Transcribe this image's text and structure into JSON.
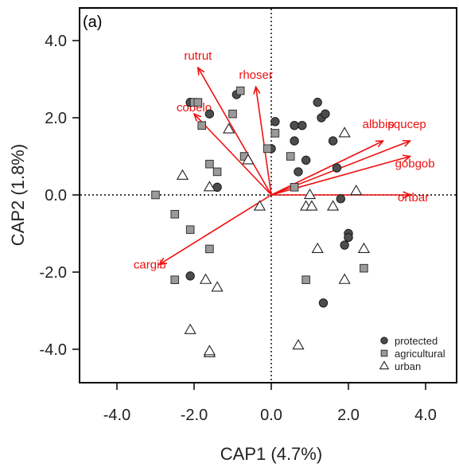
{
  "chart_data": {
    "type": "scatter",
    "panel_label": "(a)",
    "xlabel": "CAP1 (4.7%)",
    "ylabel": "CAP2 (1.8%)",
    "xlim": [
      -4.9,
      4.9
    ],
    "ylim": [
      -4.9,
      4.9
    ],
    "xticks": [
      -4.0,
      -2.0,
      0.0,
      2.0,
      4.0
    ],
    "yticks": [
      -4.0,
      -2.0,
      0.0,
      2.0,
      4.0
    ],
    "xtick_labels": [
      "-4.0",
      "-2.0",
      "0.0",
      "2.0",
      "4.0"
    ],
    "ytick_labels": [
      "-4.0",
      "-2.0",
      "0.0",
      "2.0",
      "4.0"
    ],
    "zero_lines": "dotted",
    "grid": false,
    "legend_position": "bottom-right",
    "arrow_color": "#ee1111",
    "series": [
      {
        "name": "protected",
        "marker": "circle",
        "color": "#4d4d4d",
        "points": [
          [
            -2.1,
            2.4
          ],
          [
            -1.6,
            2.1
          ],
          [
            -0.9,
            2.6
          ],
          [
            -1.4,
            0.2
          ],
          [
            -2.1,
            -2.1
          ],
          [
            0.1,
            1.9
          ],
          [
            0.0,
            1.2
          ],
          [
            0.6,
            1.8
          ],
          [
            0.8,
            1.8
          ],
          [
            1.2,
            2.4
          ],
          [
            1.3,
            2.0
          ],
          [
            1.4,
            2.1
          ],
          [
            1.6,
            1.4
          ],
          [
            0.6,
            1.4
          ],
          [
            0.9,
            0.9
          ],
          [
            0.7,
            0.6
          ],
          [
            1.7,
            0.7
          ],
          [
            1.8,
            -0.1
          ],
          [
            2.0,
            -1.0
          ],
          [
            2.0,
            -1.1
          ],
          [
            1.9,
            -1.3
          ],
          [
            1.35,
            -2.8
          ]
        ]
      },
      {
        "name": "agricultural",
        "marker": "square",
        "color": "#9a9a9a",
        "points": [
          [
            -2.0,
            2.4
          ],
          [
            -1.9,
            2.4
          ],
          [
            -1.8,
            1.8
          ],
          [
            -0.8,
            2.7
          ],
          [
            -1.0,
            2.1
          ],
          [
            0.1,
            1.6
          ],
          [
            -0.1,
            1.2
          ],
          [
            -0.7,
            1.0
          ],
          [
            -1.6,
            0.8
          ],
          [
            -1.4,
            0.6
          ],
          [
            -3.0,
            0.0
          ],
          [
            -2.5,
            -0.5
          ],
          [
            -2.1,
            -0.9
          ],
          [
            -1.6,
            -1.4
          ],
          [
            -2.5,
            -2.2
          ],
          [
            0.5,
            1.0
          ],
          [
            0.6,
            0.2
          ],
          [
            0.9,
            -2.2
          ],
          [
            2.4,
            -1.9
          ]
        ]
      },
      {
        "name": "urban",
        "marker": "triangle",
        "color": "#ffffff",
        "points": [
          [
            -1.1,
            1.7
          ],
          [
            -0.6,
            0.9
          ],
          [
            1.9,
            1.6
          ],
          [
            -2.3,
            0.5
          ],
          [
            -1.6,
            0.2
          ],
          [
            -0.3,
            -0.3
          ],
          [
            1.0,
            0.0
          ],
          [
            0.9,
            -0.3
          ],
          [
            1.05,
            -0.3
          ],
          [
            1.6,
            -0.3
          ],
          [
            2.2,
            0.1
          ],
          [
            1.2,
            -1.4
          ],
          [
            2.4,
            -1.4
          ],
          [
            -1.7,
            -2.2
          ],
          [
            -1.4,
            -2.4
          ],
          [
            1.9,
            -2.2
          ],
          [
            -2.1,
            -3.5
          ],
          [
            -1.6,
            -4.1
          ],
          [
            -1.6,
            -4.05
          ],
          [
            0.7,
            -3.9
          ]
        ]
      }
    ],
    "arrows": [
      {
        "label": "rutrut",
        "end": [
          -1.9,
          3.3
        ]
      },
      {
        "label": "rhoser",
        "end": [
          -0.4,
          2.8
        ]
      },
      {
        "label": "cobelo",
        "end": [
          -2.0,
          2.1
        ]
      },
      {
        "label": "albbip",
        "end": [
          2.9,
          1.4
        ]
      },
      {
        "label": "squcep",
        "end": [
          3.6,
          1.4
        ]
      },
      {
        "label": "gobgob",
        "end": [
          3.6,
          1.0
        ]
      },
      {
        "label": "ortbar",
        "end": [
          3.6,
          0.0
        ]
      },
      {
        "label": "cargib",
        "end": [
          -2.9,
          -1.8
        ]
      }
    ],
    "legend": [
      "protected",
      "agricultural",
      "urban"
    ]
  }
}
